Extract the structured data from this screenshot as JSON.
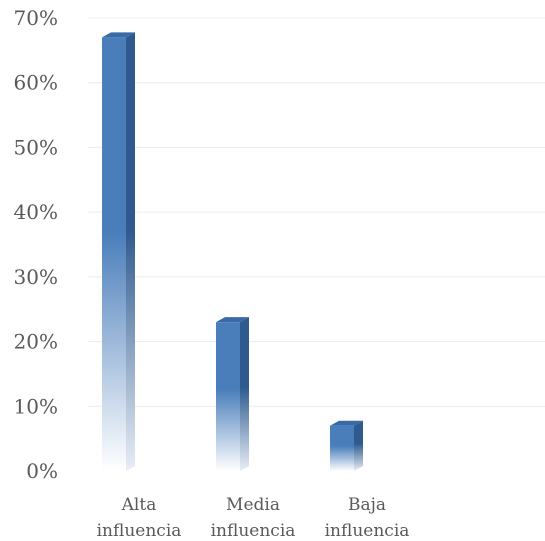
{
  "chart_data": {
    "type": "bar",
    "title": "",
    "xlabel": "",
    "ylabel": "",
    "categories": [
      [
        "Alta",
        "influencia"
      ],
      [
        "Media",
        "influencia"
      ],
      [
        "Baja",
        "influencia"
      ]
    ],
    "values": [
      0.67,
      0.23,
      0.07
    ],
    "ylim": [
      0,
      0.7
    ],
    "y_ticks": [
      "0%",
      "10%",
      "20%",
      "30%",
      "40%",
      "50%",
      "60%",
      "70%"
    ],
    "grid": true,
    "legend": "none",
    "bar_style": "3d gradient (blue fading to white at base)"
  },
  "colors": {
    "bar_front": "#4a7ebb",
    "bar_side": "#2e5a8e",
    "bar_top": "#3a6aa6",
    "text": "#595959",
    "grid": "#ececec"
  }
}
